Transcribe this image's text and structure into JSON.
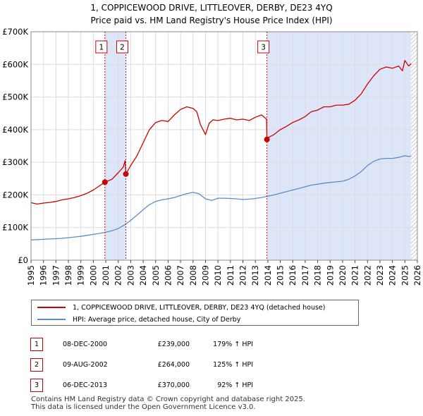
{
  "chart_data": {
    "type": "line",
    "title": "1, COPPICEWOOD DRIVE, LITTLEOVER, DERBY, DE23 4YQ",
    "subtitle": "Price paid vs. HM Land Registry's House Price Index (HPI)",
    "xlim": [
      1995,
      2026
    ],
    "ylim": [
      0,
      700000
    ],
    "y_ticks": [
      0,
      100000,
      200000,
      300000,
      400000,
      500000,
      600000,
      700000
    ],
    "y_tick_labels": [
      "£0",
      "£100K",
      "£200K",
      "£300K",
      "£400K",
      "£500K",
      "£600K",
      "£700K"
    ],
    "x_ticks": [
      1995,
      1996,
      1997,
      1998,
      1999,
      2000,
      2001,
      2002,
      2003,
      2004,
      2005,
      2006,
      2007,
      2008,
      2009,
      2010,
      2011,
      2012,
      2013,
      2014,
      2015,
      2016,
      2017,
      2018,
      2019,
      2020,
      2021,
      2022,
      2023,
      2024,
      2025,
      2026
    ],
    "x_tick_labels": [
      "1995",
      "1996",
      "1997",
      "1998",
      "1999",
      "2000",
      "2001",
      "2002",
      "2003",
      "2004",
      "2005",
      "2006",
      "2007",
      "2008",
      "2009",
      "2010",
      "2011",
      "2012",
      "2013",
      "2014",
      "2015",
      "2016",
      "2017",
      "2018",
      "2019",
      "2020",
      "2021",
      "2022",
      "2023",
      "2024",
      "2025",
      "2026"
    ],
    "series": [
      {
        "name": "1, COPPICEWOOD DRIVE, LITTLEOVER, DERBY, DE23 4YQ (detached house)",
        "color": "#cc0000",
        "x": [
          1995.0,
          1995.5,
          1996.0,
          1996.5,
          1997.0,
          1997.5,
          1998.0,
          1998.5,
          1999.0,
          1999.5,
          2000.0,
          2000.5,
          2000.93,
          2001.0,
          2001.5,
          2002.0,
          2002.4,
          2002.55,
          2002.61,
          2003.0,
          2003.5,
          2004.0,
          2004.5,
          2005.0,
          2005.5,
          2006.0,
          2006.5,
          2007.0,
          2007.5,
          2008.0,
          2008.3,
          2008.6,
          2009.0,
          2009.3,
          2009.6,
          2010.0,
          2010.5,
          2011.0,
          2011.5,
          2012.0,
          2012.5,
          2013.0,
          2013.5,
          2013.9,
          2013.93,
          2014.0,
          2014.5,
          2015.0,
          2015.5,
          2016.0,
          2016.5,
          2017.0,
          2017.5,
          2018.0,
          2018.5,
          2019.0,
          2019.5,
          2020.0,
          2020.5,
          2021.0,
          2021.5,
          2022.0,
          2022.5,
          2023.0,
          2023.5,
          2024.0,
          2024.5,
          2024.8,
          2025.0,
          2025.3,
          2025.5
        ],
        "y": [
          176000,
          172000,
          175000,
          177000,
          180000,
          185000,
          188000,
          192000,
          198000,
          205000,
          215000,
          228000,
          239000,
          240000,
          248000,
          268000,
          285000,
          305000,
          264000,
          290000,
          320000,
          360000,
          400000,
          422000,
          428000,
          425000,
          445000,
          462000,
          470000,
          465000,
          455000,
          415000,
          385000,
          420000,
          430000,
          428000,
          432000,
          435000,
          430000,
          432000,
          428000,
          438000,
          445000,
          432000,
          370000,
          375000,
          385000,
          400000,
          410000,
          422000,
          430000,
          440000,
          455000,
          460000,
          470000,
          470000,
          475000,
          475000,
          478000,
          490000,
          510000,
          540000,
          565000,
          585000,
          592000,
          588000,
          595000,
          580000,
          612000,
          595000,
          602000
        ]
      },
      {
        "name": "HPI: Average price, detached house, City of Derby",
        "color": "#5b8cc8",
        "x": [
          1995.0,
          1995.5,
          1996.0,
          1996.5,
          1997.0,
          1997.5,
          1998.0,
          1998.5,
          1999.0,
          1999.5,
          2000.0,
          2000.5,
          2001.0,
          2001.5,
          2002.0,
          2002.5,
          2003.0,
          2003.5,
          2004.0,
          2004.5,
          2005.0,
          2005.5,
          2006.0,
          2006.5,
          2007.0,
          2007.5,
          2008.0,
          2008.5,
          2009.0,
          2009.5,
          2010.0,
          2010.5,
          2011.0,
          2011.5,
          2012.0,
          2012.5,
          2013.0,
          2013.5,
          2014.0,
          2014.5,
          2015.0,
          2015.5,
          2016.0,
          2016.5,
          2017.0,
          2017.5,
          2018.0,
          2018.5,
          2019.0,
          2019.5,
          2020.0,
          2020.5,
          2021.0,
          2021.5,
          2022.0,
          2022.5,
          2023.0,
          2023.5,
          2024.0,
          2024.5,
          2025.0,
          2025.3,
          2025.5
        ],
        "y": [
          62000,
          63000,
          64000,
          65000,
          66000,
          67000,
          69000,
          71000,
          73000,
          76000,
          79000,
          82000,
          86000,
          90000,
          97000,
          108000,
          122000,
          138000,
          155000,
          170000,
          180000,
          185000,
          188000,
          192000,
          198000,
          204000,
          208000,
          203000,
          188000,
          183000,
          190000,
          190000,
          189000,
          188000,
          186000,
          187000,
          189000,
          192000,
          196000,
          200000,
          205000,
          210000,
          215000,
          220000,
          225000,
          230000,
          233000,
          236000,
          238000,
          240000,
          242000,
          248000,
          258000,
          272000,
          290000,
          303000,
          310000,
          312000,
          312000,
          315000,
          320000,
          318000,
          319000
        ]
      }
    ],
    "markers": [
      {
        "label": "1",
        "x": 2000.93,
        "y": 239000
      },
      {
        "label": "2",
        "x": 2002.61,
        "y": 264000
      },
      {
        "label": "3",
        "x": 2013.93,
        "y": 370000
      }
    ],
    "shaded_bands": [
      [
        2000.93,
        2002.61
      ],
      [
        2013.93,
        2025.5
      ]
    ],
    "hatched_after": 2025.5,
    "grid": true
  },
  "legend": {
    "property": "1, COPPICEWOOD DRIVE, LITTLEOVER, DERBY, DE23 4YQ (detached house)",
    "hpi": "HPI: Average price, detached house, City of Derby",
    "property_color": "#cc0000",
    "hpi_color": "#5b8cc8"
  },
  "sales": [
    {
      "num": "1",
      "date": "08-DEC-2000",
      "price": "£239,000",
      "pct": "179% ↑ HPI"
    },
    {
      "num": "2",
      "date": "09-AUG-2002",
      "price": "£264,000",
      "pct": "125% ↑ HPI"
    },
    {
      "num": "3",
      "date": "06-DEC-2013",
      "price": "£370,000",
      "pct": "92% ↑ HPI"
    }
  ],
  "footer": {
    "line1": "Contains HM Land Registry data © Crown copyright and database right 2025.",
    "line2": "This data is licensed under the Open Government Licence v3.0."
  }
}
